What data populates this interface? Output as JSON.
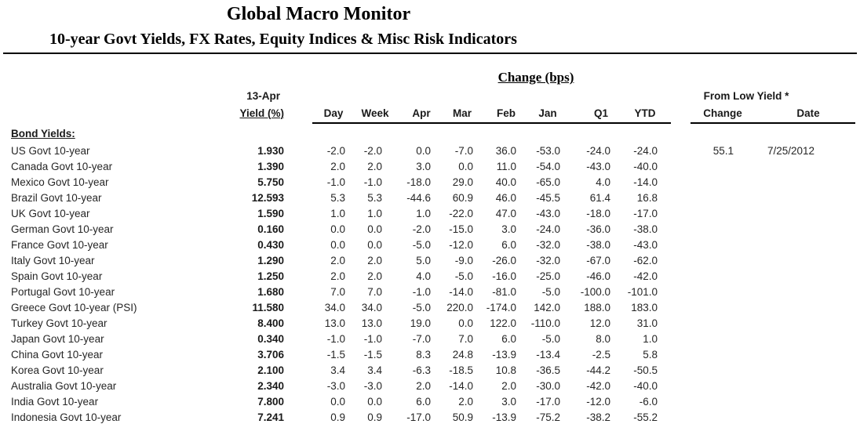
{
  "page": {
    "title": "Global Macro Monitor",
    "subtitle": "10-year Govt Yields, FX Rates, Equity Indices & Misc Risk Indicators"
  },
  "table": {
    "change_group_label": "Change (bps)",
    "as_of_date": "13-Apr",
    "yield_col_label": "Yield (%)",
    "change_cols": [
      "Day",
      "Week",
      "Apr",
      "Mar",
      "Feb",
      "Jan",
      "Q1",
      "YTD"
    ],
    "from_low": {
      "label": "From Low Yield *",
      "change_col": "Change",
      "date_col": "Date"
    },
    "section_label": "Bond Yields:",
    "rows": [
      {
        "label": "US Govt 10-year",
        "yield": "1.930",
        "changes": [
          "-2.0",
          "-2.0",
          "0.0",
          "-7.0",
          "36.0",
          "-53.0",
          "-24.0",
          "-24.0"
        ],
        "from_low_change": "55.1",
        "from_low_date": "7/25/2012"
      },
      {
        "label": "Canada Govt 10-year",
        "yield": "1.390",
        "changes": [
          "2.0",
          "2.0",
          "3.0",
          "0.0",
          "11.0",
          "-54.0",
          "-43.0",
          "-40.0"
        ],
        "from_low_change": "",
        "from_low_date": ""
      },
      {
        "label": "Mexico Govt 10-year",
        "yield": "5.750",
        "changes": [
          "-1.0",
          "-1.0",
          "-18.0",
          "29.0",
          "40.0",
          "-65.0",
          "4.0",
          "-14.0"
        ],
        "from_low_change": "",
        "from_low_date": ""
      },
      {
        "label": "Brazil Govt 10-year",
        "yield": "12.593",
        "changes": [
          "5.3",
          "5.3",
          "-44.6",
          "60.9",
          "46.0",
          "-45.5",
          "61.4",
          "16.8"
        ],
        "from_low_change": "",
        "from_low_date": ""
      },
      {
        "label": "UK Govt 10-year",
        "yield": "1.590",
        "changes": [
          "1.0",
          "1.0",
          "1.0",
          "-22.0",
          "47.0",
          "-43.0",
          "-18.0",
          "-17.0"
        ],
        "from_low_change": "",
        "from_low_date": ""
      },
      {
        "label": "German Govt 10-year",
        "yield": "0.160",
        "changes": [
          "0.0",
          "0.0",
          "-2.0",
          "-15.0",
          "3.0",
          "-24.0",
          "-36.0",
          "-38.0"
        ],
        "from_low_change": "",
        "from_low_date": ""
      },
      {
        "label": "France Govt 10-year",
        "yield": "0.430",
        "changes": [
          "0.0",
          "0.0",
          "-5.0",
          "-12.0",
          "6.0",
          "-32.0",
          "-38.0",
          "-43.0"
        ],
        "from_low_change": "",
        "from_low_date": ""
      },
      {
        "label": "Italy Govt 10-year",
        "yield": "1.290",
        "changes": [
          "2.0",
          "2.0",
          "5.0",
          "-9.0",
          "-26.0",
          "-32.0",
          "-67.0",
          "-62.0"
        ],
        "from_low_change": "",
        "from_low_date": ""
      },
      {
        "label": "Spain Govt 10-year",
        "yield": "1.250",
        "changes": [
          "2.0",
          "2.0",
          "4.0",
          "-5.0",
          "-16.0",
          "-25.0",
          "-46.0",
          "-42.0"
        ],
        "from_low_change": "",
        "from_low_date": ""
      },
      {
        "label": "Portugal Govt 10-year",
        "yield": "1.680",
        "changes": [
          "7.0",
          "7.0",
          "-1.0",
          "-14.0",
          "-81.0",
          "-5.0",
          "-100.0",
          "-101.0"
        ],
        "from_low_change": "",
        "from_low_date": ""
      },
      {
        "label": "Greece Govt 10-year (PSI)",
        "yield": "11.580",
        "changes": [
          "34.0",
          "34.0",
          "-5.0",
          "220.0",
          "-174.0",
          "142.0",
          "188.0",
          "183.0"
        ],
        "from_low_change": "",
        "from_low_date": ""
      },
      {
        "label": "Turkey Govt 10-year",
        "yield": "8.400",
        "changes": [
          "13.0",
          "13.0",
          "19.0",
          "0.0",
          "122.0",
          "-110.0",
          "12.0",
          "31.0"
        ],
        "from_low_change": "",
        "from_low_date": ""
      },
      {
        "label": "Japan Govt 10-year",
        "yield": "0.340",
        "changes": [
          "-1.0",
          "-1.0",
          "-7.0",
          "7.0",
          "6.0",
          "-5.0",
          "8.0",
          "1.0"
        ],
        "from_low_change": "",
        "from_low_date": ""
      },
      {
        "label": "China Govt 10-year",
        "yield": "3.706",
        "changes": [
          "-1.5",
          "-1.5",
          "8.3",
          "24.8",
          "-13.9",
          "-13.4",
          "-2.5",
          "5.8"
        ],
        "from_low_change": "",
        "from_low_date": ""
      },
      {
        "label": "Korea Govt 10-year",
        "yield": "2.100",
        "changes": [
          "3.4",
          "3.4",
          "-6.3",
          "-18.5",
          "10.8",
          "-36.5",
          "-44.2",
          "-50.5"
        ],
        "from_low_change": "",
        "from_low_date": ""
      },
      {
        "label": "Australia Govt 10-year",
        "yield": "2.340",
        "changes": [
          "-3.0",
          "-3.0",
          "2.0",
          "-14.0",
          "2.0",
          "-30.0",
          "-42.0",
          "-40.0"
        ],
        "from_low_change": "",
        "from_low_date": ""
      },
      {
        "label": "India Govt 10-year",
        "yield": "7.800",
        "changes": [
          "0.0",
          "0.0",
          "6.0",
          "2.0",
          "3.0",
          "-17.0",
          "-12.0",
          "-6.0"
        ],
        "from_low_change": "",
        "from_low_date": ""
      },
      {
        "label": "Indonesia Govt 10-year",
        "yield": "7.241",
        "changes": [
          "0.9",
          "0.9",
          "-17.0",
          "50.9",
          "-13.9",
          "-75.2",
          "-38.2",
          "-55.2"
        ],
        "from_low_change": "",
        "from_low_date": ""
      }
    ]
  }
}
